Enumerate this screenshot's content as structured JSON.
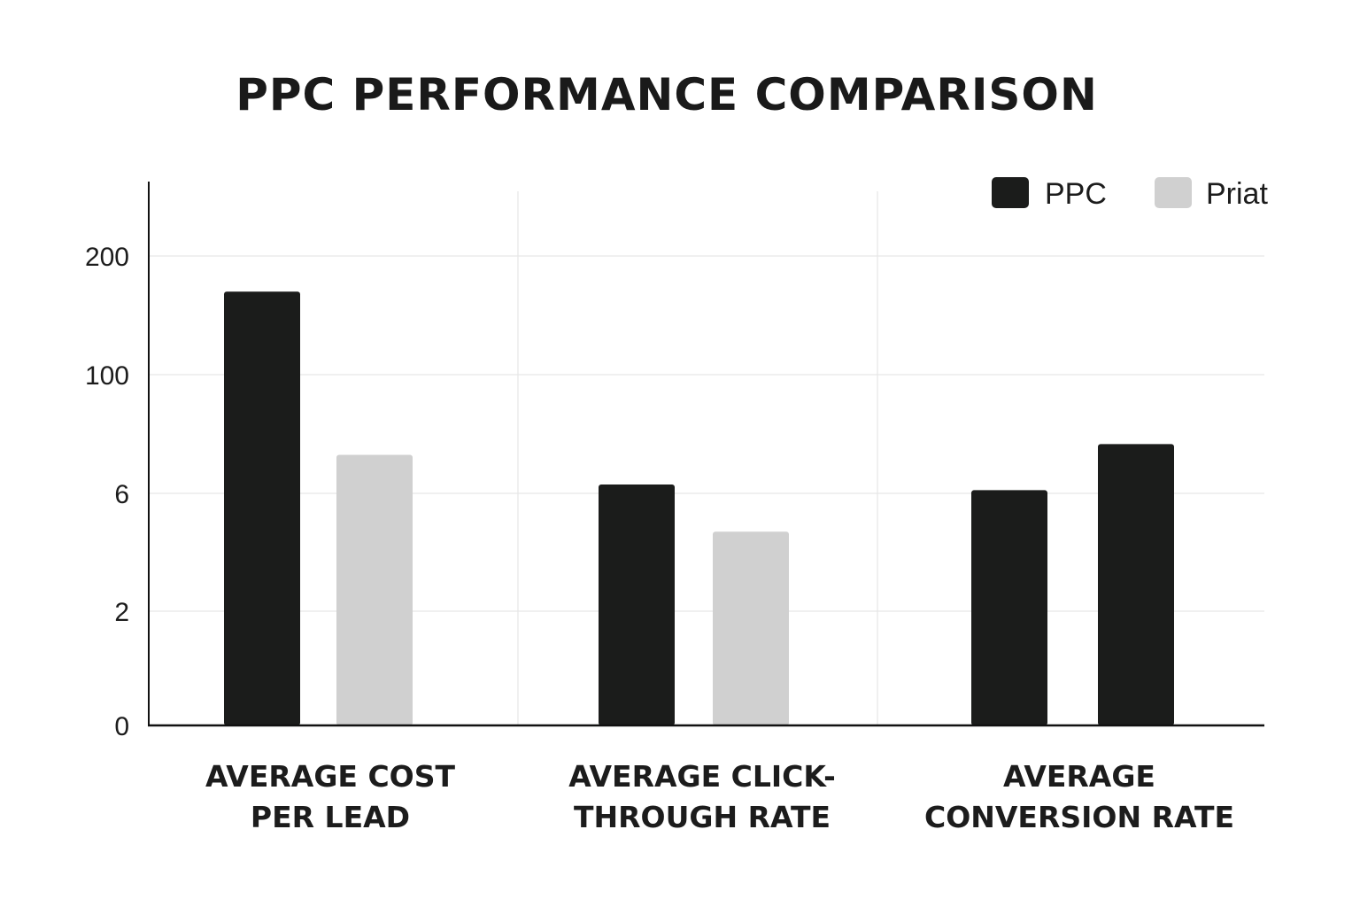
{
  "chart_data": {
    "type": "bar",
    "title": "PPC PERFORMANCE COMPARISON",
    "xlabel": "",
    "ylabel": "",
    "y_ticks": [
      "0",
      "2",
      "6",
      "100",
      "200"
    ],
    "categories": [
      [
        "AVERAGE COST",
        "PER LEAD"
      ],
      [
        "AVERAGE CLICK-",
        "THROUGH RATE"
      ],
      [
        "AVERAGE",
        "CONVERSION RATE"
      ]
    ],
    "series": [
      {
        "name": "PPC",
        "color": "#1b1c1b",
        "values": [
          170,
          13,
          8.5
        ]
      },
      {
        "name": "Priat",
        "color": "#d0d0d0",
        "values": [
          36.5,
          4.7,
          45
        ]
      }
    ],
    "bar_colors": [
      [
        "#1b1c1b",
        "#d0d0d0"
      ],
      [
        "#1b1c1b",
        "#d0d0d0"
      ],
      [
        "#1b1c1b",
        "#1b1c1b"
      ]
    ],
    "legend_position": "top-right",
    "grid": true,
    "axis_color": "#111111",
    "grid_color": "#e6e6e6"
  }
}
